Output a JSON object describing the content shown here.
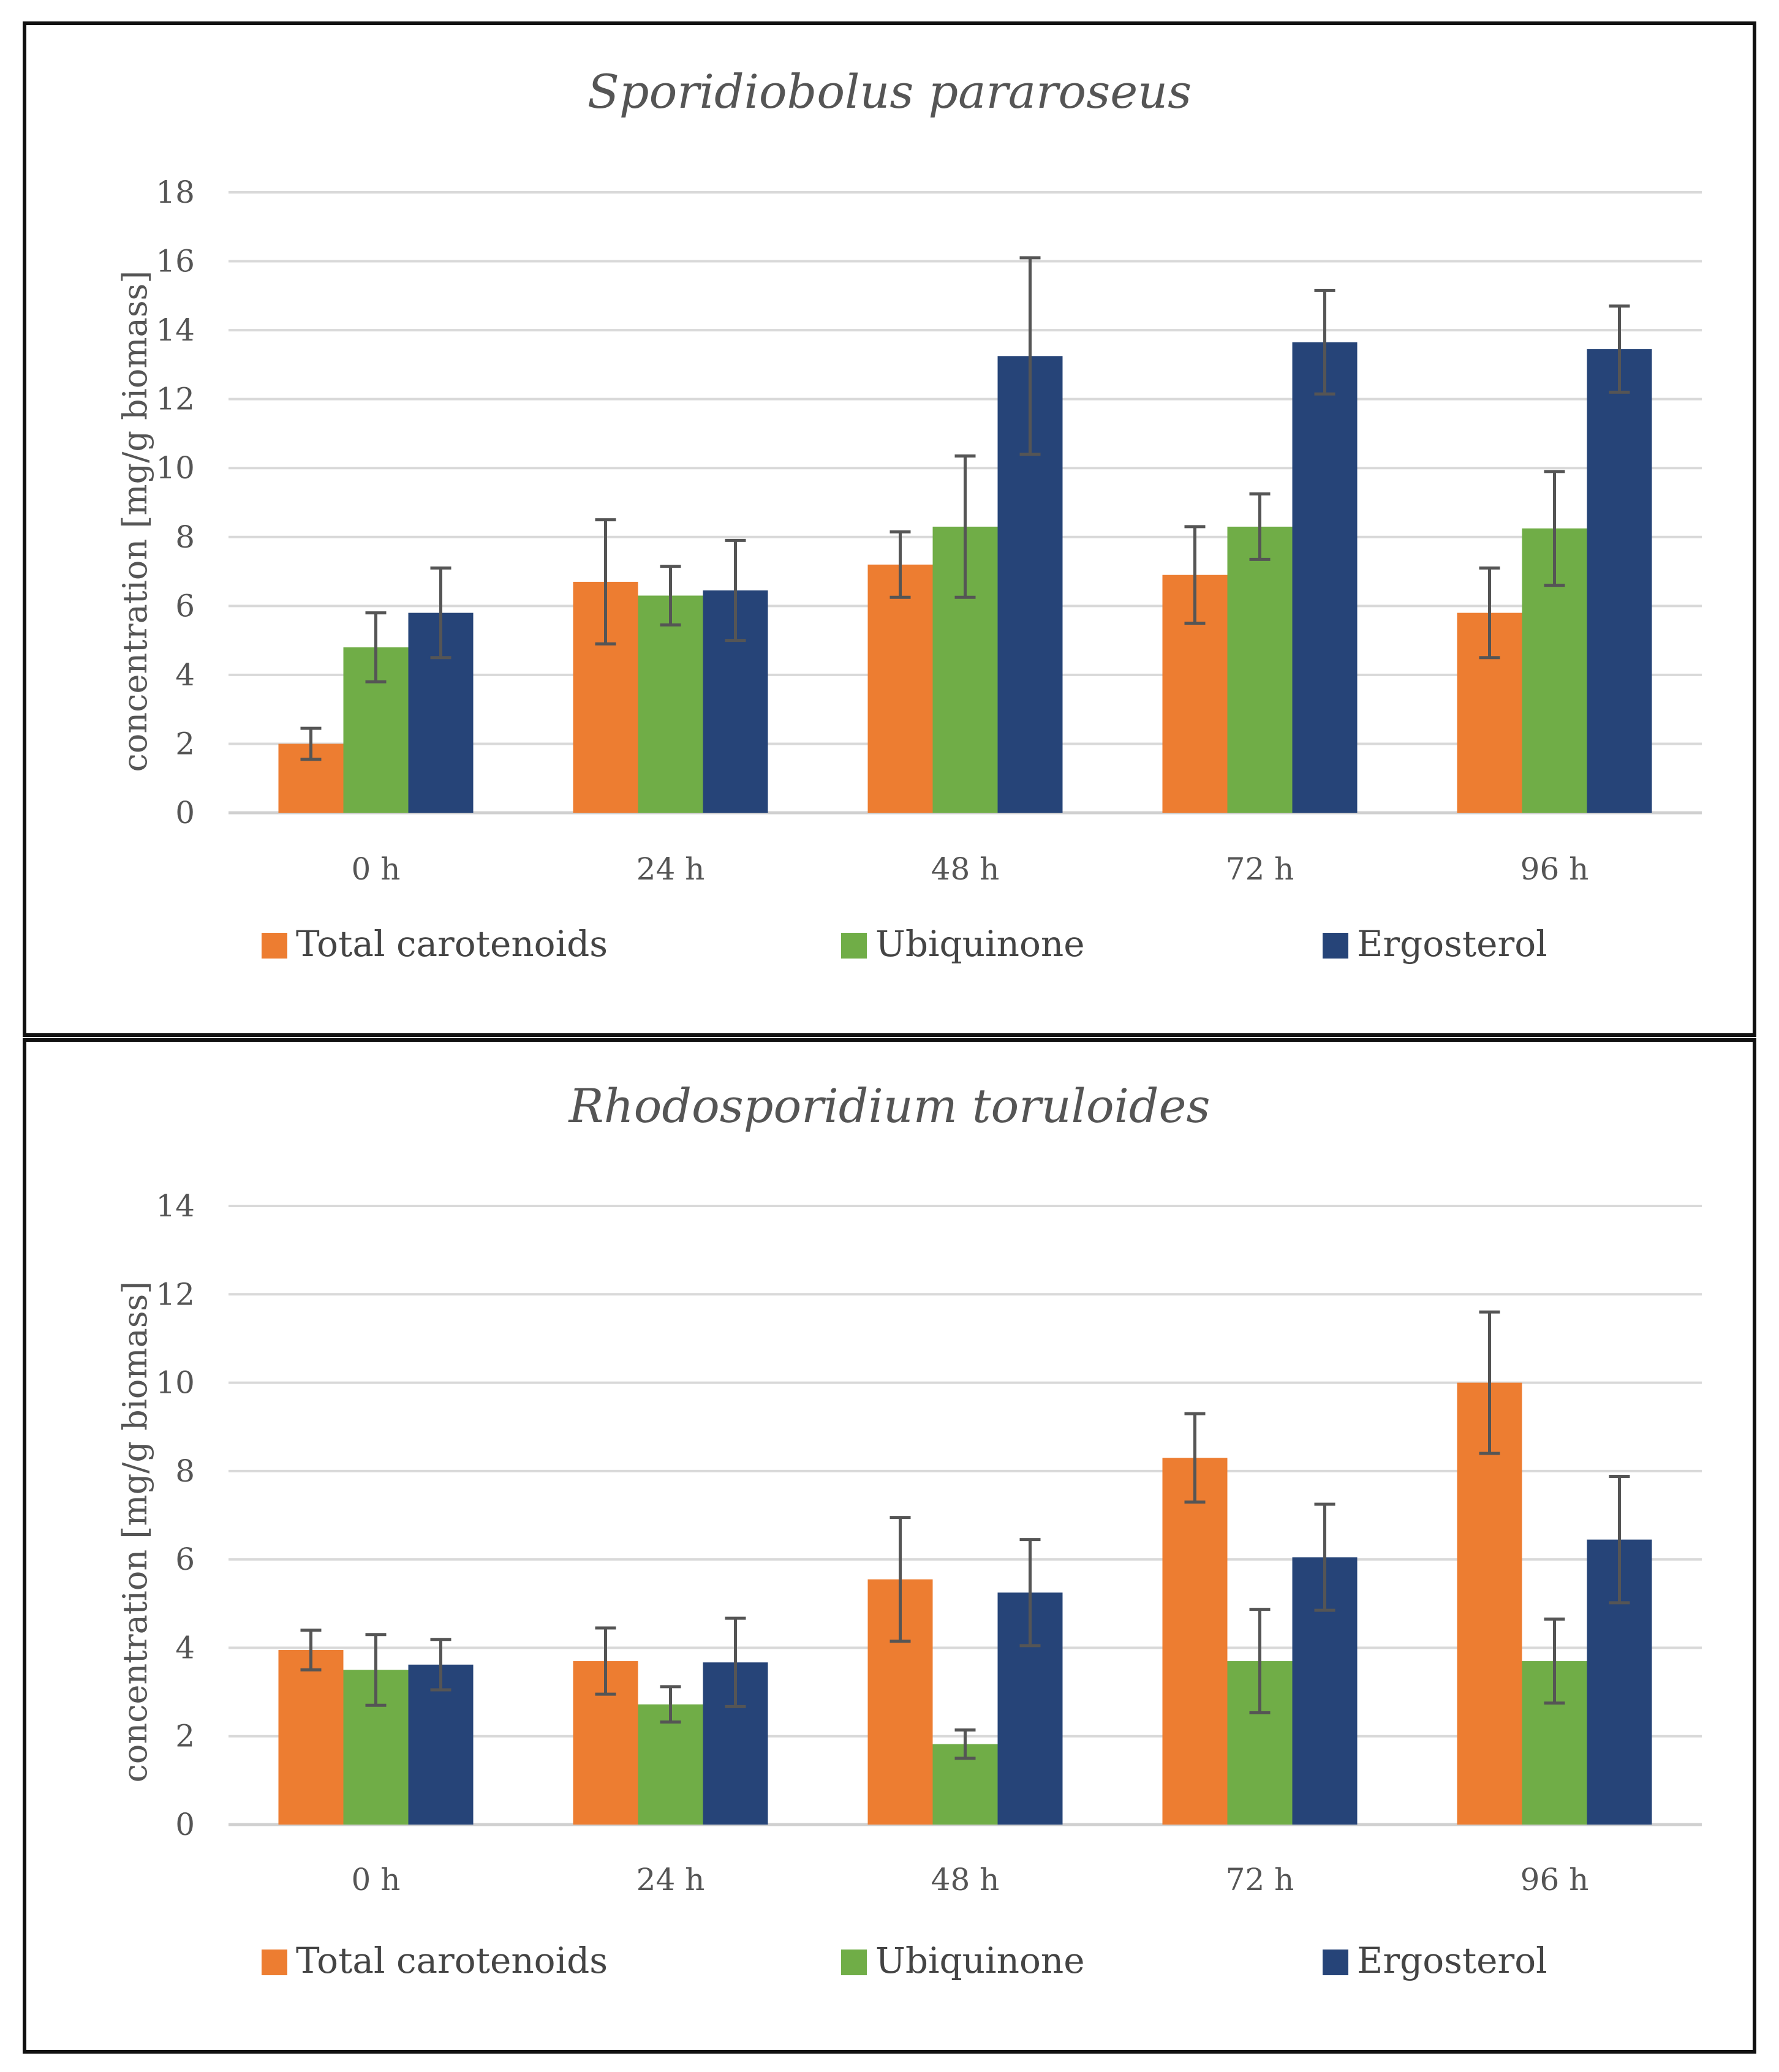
{
  "chart_data": [
    {
      "type": "bar",
      "title": "Sporidiobolus pararoseus",
      "xlabel": "",
      "ylabel": "concentration [mg/g biomass]",
      "categories": [
        "0 h",
        "24 h",
        "48 h",
        "72 h",
        "96 h"
      ],
      "ylim": [
        0,
        18
      ],
      "yticks": [
        0,
        2,
        4,
        6,
        8,
        10,
        12,
        14,
        16,
        18
      ],
      "grid": true,
      "legend_position": "bottom",
      "series": [
        {
          "name": "Total carotenoids",
          "color": "#ED7D31",
          "values": [
            2.0,
            6.7,
            7.2,
            6.9,
            5.8
          ],
          "errors": [
            0.45,
            1.8,
            0.95,
            1.4,
            1.3
          ]
        },
        {
          "name": "Ubiquinone",
          "color": "#70AD47",
          "values": [
            4.8,
            6.3,
            8.3,
            8.3,
            8.25
          ],
          "errors": [
            1.0,
            0.85,
            2.05,
            0.95,
            1.65
          ]
        },
        {
          "name": "Ergosterol",
          "color": "#264478",
          "values": [
            5.8,
            6.45,
            13.25,
            13.65,
            13.45
          ],
          "errors": [
            1.3,
            1.45,
            2.85,
            1.5,
            1.25
          ]
        }
      ]
    },
    {
      "type": "bar",
      "title": "Rhodosporidium toruloides",
      "xlabel": "",
      "ylabel": "concentration [mg/g biomass]",
      "categories": [
        "0 h",
        "24 h",
        "48 h",
        "72 h",
        "96 h"
      ],
      "ylim": [
        0,
        14
      ],
      "yticks": [
        0,
        2,
        4,
        6,
        8,
        10,
        12,
        14
      ],
      "grid": true,
      "legend_position": "bottom",
      "series": [
        {
          "name": "Total carotenoids",
          "color": "#ED7D31",
          "values": [
            3.95,
            3.7,
            5.55,
            8.3,
            10.0
          ],
          "errors": [
            0.45,
            0.75,
            1.4,
            1.0,
            1.6
          ]
        },
        {
          "name": "Ubiquinone",
          "color": "#70AD47",
          "values": [
            3.5,
            2.72,
            1.82,
            3.7,
            3.7
          ],
          "errors": [
            0.8,
            0.4,
            0.32,
            1.17,
            0.95
          ]
        },
        {
          "name": "Ergosterol",
          "color": "#264478",
          "values": [
            3.62,
            3.67,
            5.25,
            6.05,
            6.45
          ],
          "errors": [
            0.57,
            1.0,
            1.2,
            1.2,
            1.43
          ]
        }
      ]
    }
  ]
}
